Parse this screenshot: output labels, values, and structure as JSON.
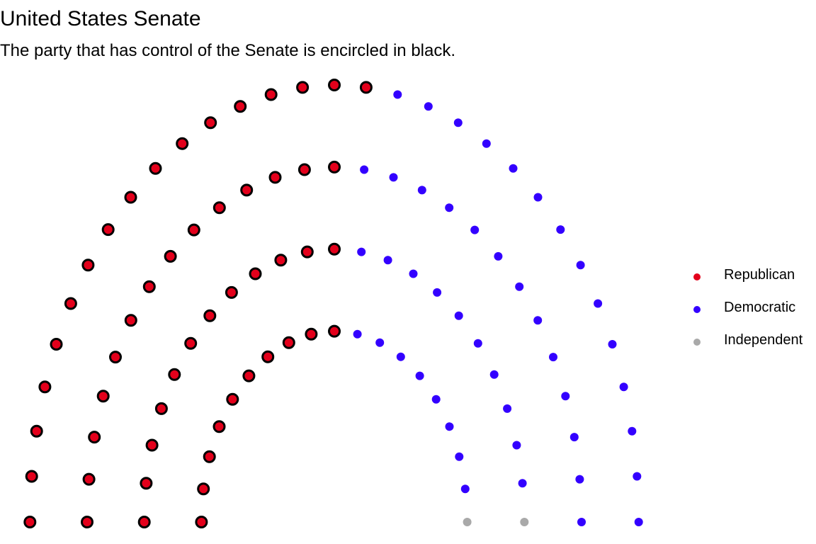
{
  "chart_data": {
    "type": "scatter",
    "title": "United States Senate",
    "subtitle": "The party that has control of the Senate is encircled in black.",
    "grid": false,
    "legend_placement": "right",
    "controlling_party": "Republican",
    "parties": [
      {
        "name": "Republican",
        "seats": 53,
        "color": "#E3001B"
      },
      {
        "name": "Democratic",
        "seats": 45,
        "color": "#3300FF"
      },
      {
        "name": "Independent",
        "seats": 2,
        "color": "#A9A9A9"
      }
    ],
    "rows": [
      {
        "radius": 1.0,
        "seats": 19
      },
      {
        "radius": 1.43,
        "seats": 23
      },
      {
        "radius": 1.86,
        "seats": 27
      },
      {
        "radius": 2.29,
        "seats": 31
      }
    ]
  }
}
